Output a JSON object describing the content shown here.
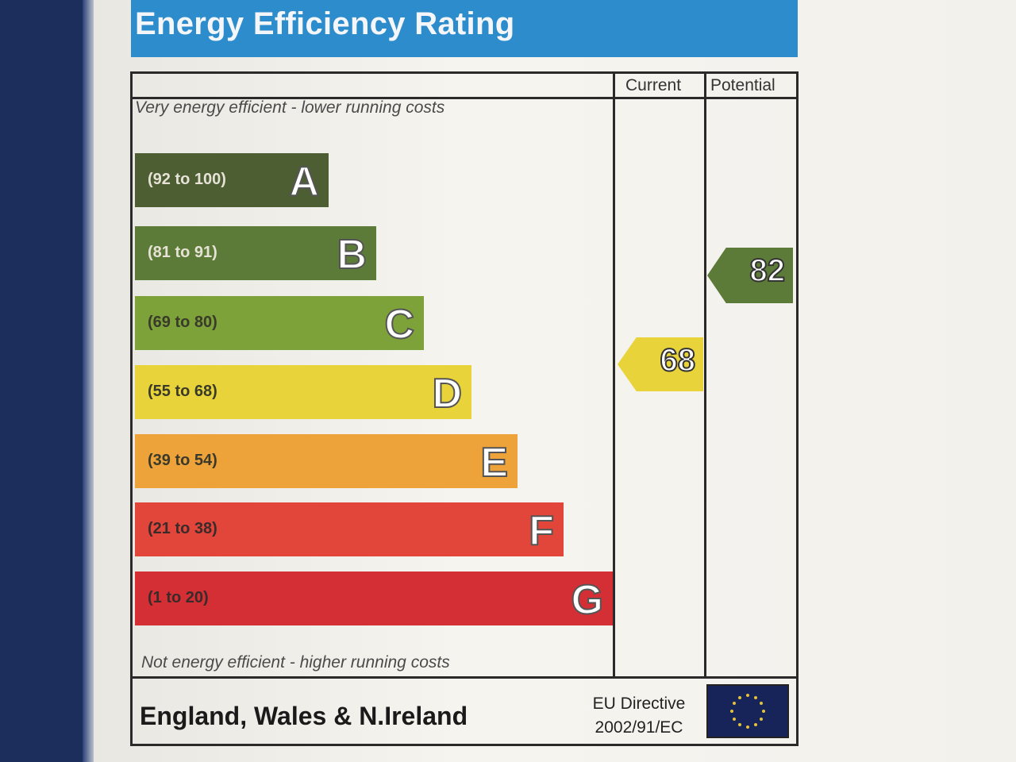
{
  "title": "Energy Efficiency Rating",
  "columns": {
    "current": "Current",
    "potential": "Potential"
  },
  "top_note": "Very energy efficient - lower running costs",
  "bottom_note": "Not energy efficient - higher running costs",
  "bands": [
    {
      "letter": "A",
      "range": "(92 to 100)",
      "color": "#4c5e32",
      "text_color": "#e6e2d6"
    },
    {
      "letter": "B",
      "range": "(81 to 91)",
      "color": "#5d7b38",
      "text_color": "#e6e2d6"
    },
    {
      "letter": "C",
      "range": "(69 to 80)",
      "color": "#7da23a",
      "text_color": "#3a3a2a"
    },
    {
      "letter": "D",
      "range": "(55 to 68)",
      "color": "#e8d43a",
      "text_color": "#3a3a2a"
    },
    {
      "letter": "E",
      "range": "(39 to 54)",
      "color": "#eea23a",
      "text_color": "#3a3a2a"
    },
    {
      "letter": "F",
      "range": "(21 to 38)",
      "color": "#e2463b",
      "text_color": "#3a2a2a"
    },
    {
      "letter": "G",
      "range": "(1 to 20)",
      "color": "#d42f35",
      "text_color": "#3a2a2a"
    }
  ],
  "current_rating": {
    "value": "68",
    "band": "D",
    "color": "#e8d43a"
  },
  "potential_rating": {
    "value": "82",
    "band": "B",
    "color": "#5d7b38"
  },
  "footer": {
    "region": "England, Wales & N.Ireland",
    "directive_line1": "EU Directive",
    "directive_line2": "2002/91/EC",
    "flag_icon": "eu-flag-icon"
  }
}
